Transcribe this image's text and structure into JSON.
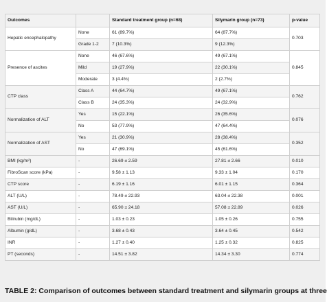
{
  "table": {
    "headers": [
      "Outcomes",
      "",
      "Standard treatment group (n=68)",
      "Silymarin group (n=73)",
      "p-value"
    ],
    "groups": [
      {
        "outcome": "Hepatic encephalopathy",
        "p_value": "0.703",
        "rows": [
          {
            "sub": "None",
            "standard": "61 (89.7%)",
            "silymarin": "64 (87.7%)"
          },
          {
            "sub": "Grade 1-2",
            "standard": "7 (10.3%)",
            "silymarin": "9 (12.3%)"
          }
        ]
      },
      {
        "outcome": "Presence of ascites",
        "p_value": "0.845",
        "rows": [
          {
            "sub": "None",
            "standard": "46 (67.6%)",
            "silymarin": "49 (67.1%)"
          },
          {
            "sub": "Mild",
            "standard": "19 (27.9%)",
            "silymarin": "22 (30.1%)"
          },
          {
            "sub": "Moderate",
            "standard": "3 (4.4%)",
            "silymarin": "2 (2.7%)"
          }
        ]
      },
      {
        "outcome": "CTP class",
        "p_value": "0.762",
        "rows": [
          {
            "sub": "Class A",
            "standard": "44 (64.7%)",
            "silymarin": "49 (67.1%)"
          },
          {
            "sub": "Class B",
            "standard": "24 (35.3%)",
            "silymarin": "24 (32.9%)"
          }
        ]
      },
      {
        "outcome": "Normalization of ALT",
        "p_value": "0.076",
        "rows": [
          {
            "sub": "Yes",
            "standard": "15 (22.1%)",
            "silymarin": "26 (35.6%)"
          },
          {
            "sub": "No",
            "standard": "53 (77.9%)",
            "silymarin": "47 (64.4%)"
          }
        ]
      },
      {
        "outcome": "Normalization of AST",
        "p_value": "0.352",
        "rows": [
          {
            "sub": "Yes",
            "standard": "21 (30.9%)",
            "silymarin": "28 (38.4%)"
          },
          {
            "sub": "No",
            "standard": "47 (69.1%)",
            "silymarin": "45 (61.6%)"
          }
        ]
      }
    ],
    "single_rows": [
      {
        "outcome": "BMI (kg/m²)",
        "sub": "-",
        "standard": "26.69 ± 2.59",
        "silymarin": "27.81 ± 2.66",
        "p_value": "0.010"
      },
      {
        "outcome": "FibroScan score (kPa)",
        "sub": "-",
        "standard": "9.58 ± 1.13",
        "silymarin": "9.33 ± 1.04",
        "p_value": "0.170"
      },
      {
        "outcome": "CTP score",
        "sub": "-",
        "standard": "6.19 ± 1.16",
        "silymarin": "6.01 ± 1.15",
        "p_value": "0.364"
      },
      {
        "outcome": "ALT (U/L)",
        "sub": "-",
        "standard": "78.49 ± 22.93",
        "silymarin": "63.04 ± 22.38",
        "p_value": "0.001"
      },
      {
        "outcome": "AST (U/L)",
        "sub": "-",
        "standard": "65.90 ± 24.18",
        "silymarin": "57.08 ± 22.89",
        "p_value": "0.026"
      },
      {
        "outcome": "Bilirubin (mg/dL)",
        "sub": "-",
        "standard": "1.03 ± 0.23",
        "silymarin": "1.05 ± 0.26",
        "p_value": "0.755"
      },
      {
        "outcome": "Albumin (g/dL)",
        "sub": "-",
        "standard": "3.68 ± 0.43",
        "silymarin": "3.64 ± 0.45",
        "p_value": "0.542"
      },
      {
        "outcome": "INR",
        "sub": "-",
        "standard": "1.27 ± 0.40",
        "silymarin": "1.25 ± 0.32",
        "p_value": "0.825"
      },
      {
        "outcome": "PT (seconds)",
        "sub": "-",
        "standard": "14.51 ± 3.82",
        "silymarin": "14.34 ± 3.30",
        "p_value": "0.774"
      }
    ]
  },
  "caption": "TABLE 2: Comparison of outcomes between standard treatment and silymarin groups at three"
}
